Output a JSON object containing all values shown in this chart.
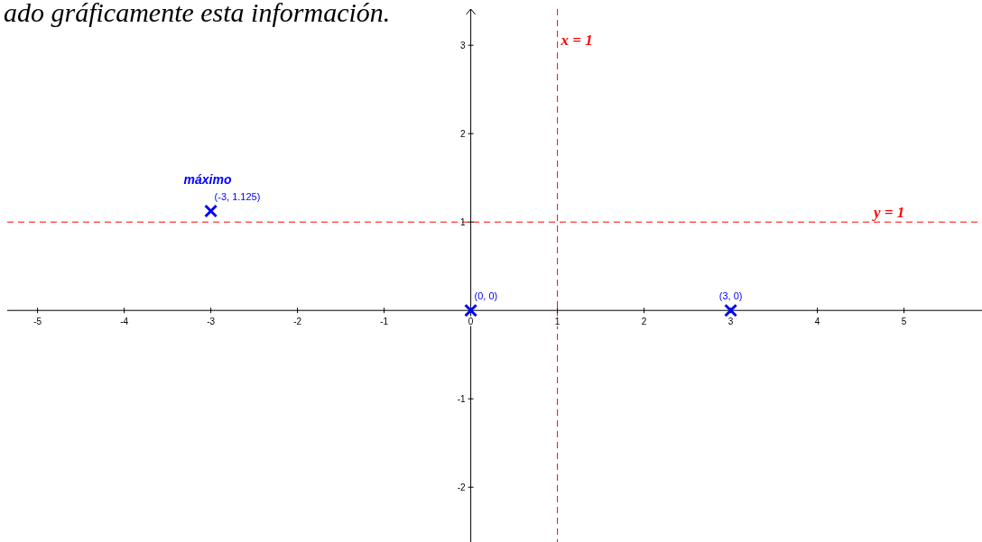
{
  "chart_data": {
    "type": "scatter",
    "title": "ado gráficamente esta información.",
    "x": [
      -3,
      0,
      3
    ],
    "series": [
      {
        "color": "#0000ff",
        "values": [
          1.125,
          0,
          0
        ],
        "value_labels": [
          "(-3, 1.125)",
          "(0, 0)",
          "(3, 0)"
        ]
      }
    ],
    "marker": "cross",
    "xlim": [
      -5.35,
      5.9
    ],
    "ylim": [
      -2.62,
      3.41
    ],
    "xticks": [
      -5,
      -4,
      -3,
      -2,
      -1,
      0,
      1,
      2,
      3,
      4,
      5
    ],
    "yticks": [
      -2,
      -1,
      1,
      2,
      3
    ],
    "grid": false,
    "ref_lines": [
      {
        "axis": "x",
        "value": 1,
        "label": "x = 1",
        "color": "#ff0000",
        "line_style": "dashed"
      },
      {
        "axis": "y",
        "value": 1,
        "label": "y = 1",
        "color": "#ff0000",
        "line_style": "dashed"
      }
    ],
    "annotations": [
      {
        "text": "máximo",
        "x": -3,
        "y": 1.125
      }
    ]
  }
}
